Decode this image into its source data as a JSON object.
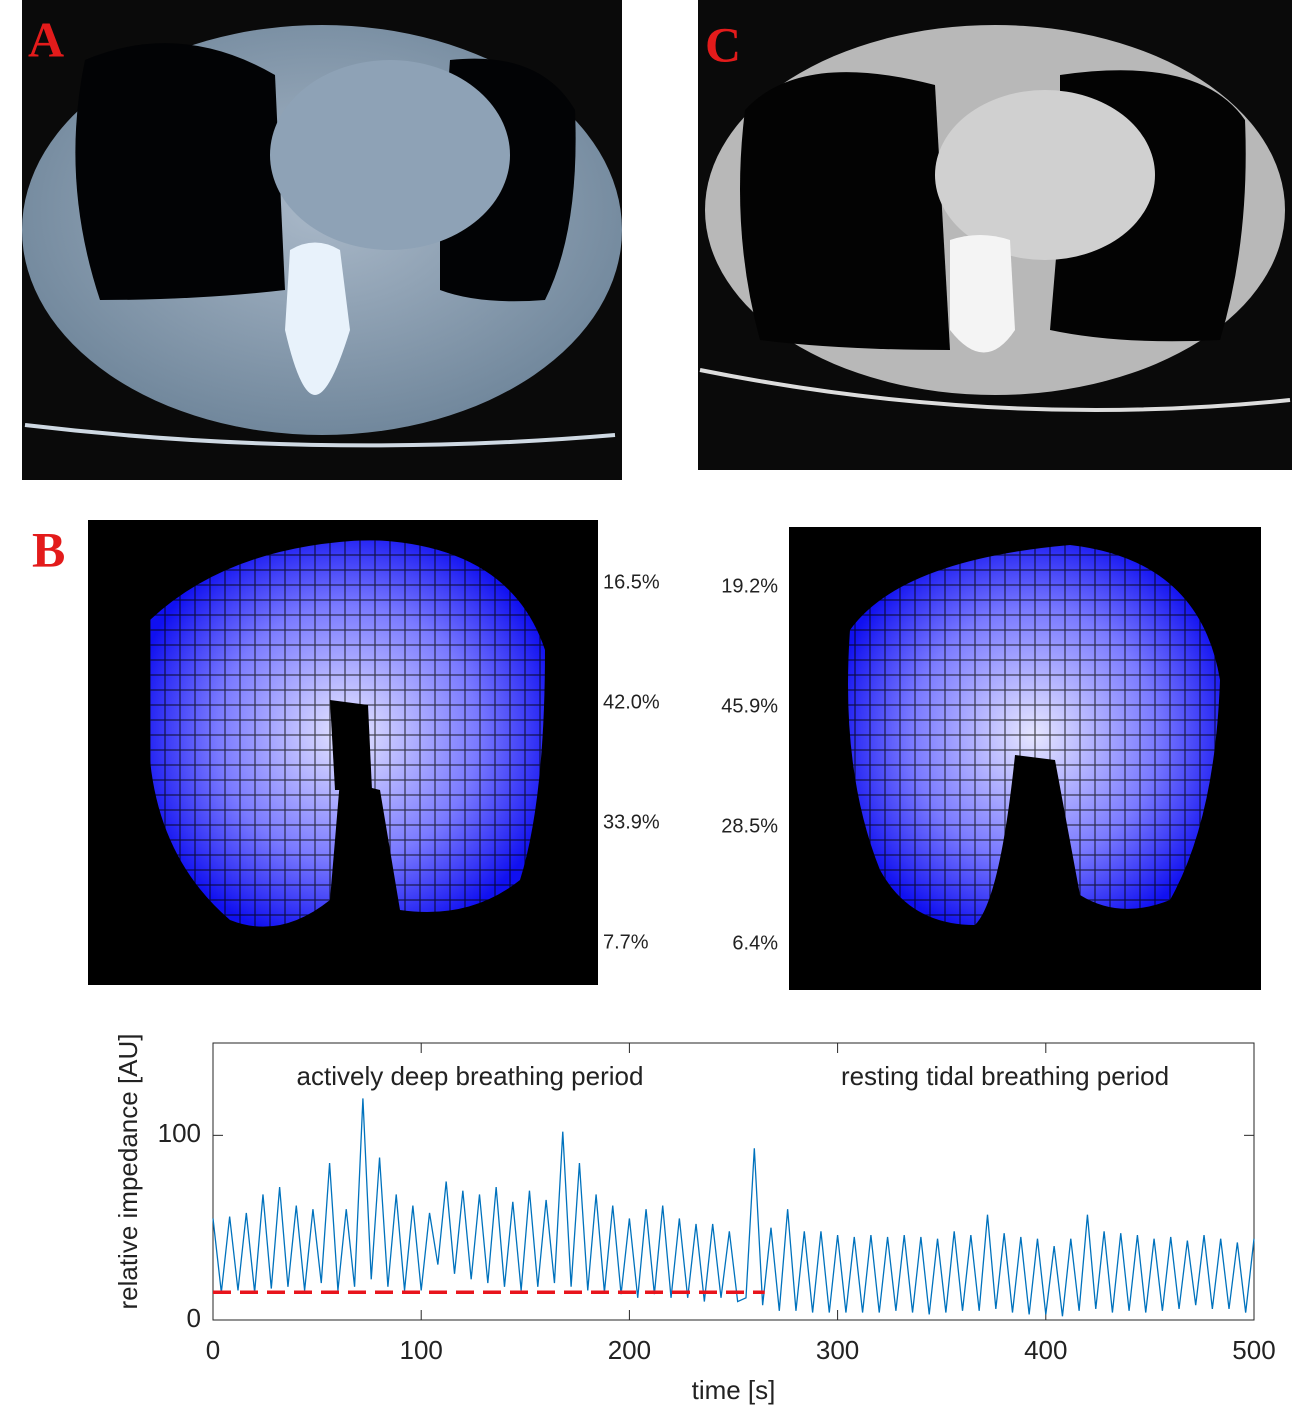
{
  "panel_labels": [
    "A",
    "B",
    "C"
  ],
  "eit_left_percentages": [
    "16.5%",
    "42.0%",
    "33.9%",
    "7.7%"
  ],
  "eit_right_percentages": [
    "19.2%",
    "45.9%",
    "28.5%",
    "6.4%"
  ],
  "chart_data": {
    "type": "line",
    "annotations": [
      "actively deep breathing period",
      "resting tidal breathing period"
    ],
    "xlabel": "time [s]",
    "ylabel": "relative impedance [AU]",
    "x": [
      0,
      4,
      8,
      12,
      16,
      20,
      24,
      28,
      32,
      36,
      40,
      44,
      48,
      52,
      56,
      60,
      64,
      68,
      72,
      76,
      80,
      84,
      88,
      92,
      96,
      100,
      104,
      108,
      112,
      116,
      120,
      124,
      128,
      132,
      136,
      140,
      144,
      148,
      152,
      156,
      160,
      164,
      168,
      172,
      176,
      180,
      184,
      188,
      192,
      196,
      200,
      204,
      208,
      212,
      216,
      220,
      224,
      228,
      232,
      236,
      240,
      244,
      248,
      252,
      256,
      260,
      264,
      268,
      272,
      276,
      280,
      284,
      288,
      292,
      296,
      300,
      304,
      308,
      312,
      316,
      320,
      324,
      328,
      332,
      336,
      340,
      344,
      348,
      352,
      356,
      360,
      364,
      368,
      372,
      376,
      380,
      384,
      388,
      392,
      396,
      400,
      404,
      408,
      412,
      416,
      420,
      424,
      428,
      432,
      436,
      440,
      444,
      448,
      452,
      456,
      460,
      464,
      468,
      472,
      476,
      480,
      484,
      488,
      492,
      496,
      500
    ],
    "series": [
      {
        "color": "#0072bd",
        "values": [
          55,
          15,
          56,
          16,
          58,
          15,
          68,
          17,
          72,
          18,
          62,
          16,
          60,
          20,
          85,
          16,
          60,
          18,
          120,
          22,
          88,
          18,
          68,
          16,
          62,
          16,
          58,
          30,
          75,
          25,
          70,
          22,
          68,
          20,
          72,
          18,
          64,
          16,
          70,
          18,
          65,
          20,
          102,
          18,
          85,
          16,
          68,
          15,
          62,
          14,
          55,
          12,
          60,
          14,
          62,
          12,
          55,
          12,
          52,
          10,
          52,
          12,
          48,
          10,
          12,
          93,
          8,
          50,
          5,
          60,
          5,
          48,
          4,
          48,
          4,
          46,
          4,
          45,
          4,
          46,
          4,
          45,
          5,
          46,
          4,
          45,
          3,
          44,
          4,
          48,
          5,
          46,
          5,
          57,
          6,
          47,
          4,
          45,
          3,
          44,
          3,
          40,
          2,
          44,
          5,
          57,
          6,
          48,
          4,
          47,
          5,
          46,
          4,
          44,
          5,
          45,
          6,
          43,
          8,
          46,
          6,
          44,
          6,
          42,
          4,
          44
        ]
      }
    ],
    "dashed_line": {
      "x": [
        0,
        265
      ],
      "y": 15,
      "color": "#e8141c"
    },
    "xlim": [
      0,
      500
    ],
    "xticks": [
      0,
      100,
      200,
      300,
      400,
      500
    ],
    "ylim": [
      0,
      150
    ],
    "yticks": [
      0,
      100
    ]
  }
}
